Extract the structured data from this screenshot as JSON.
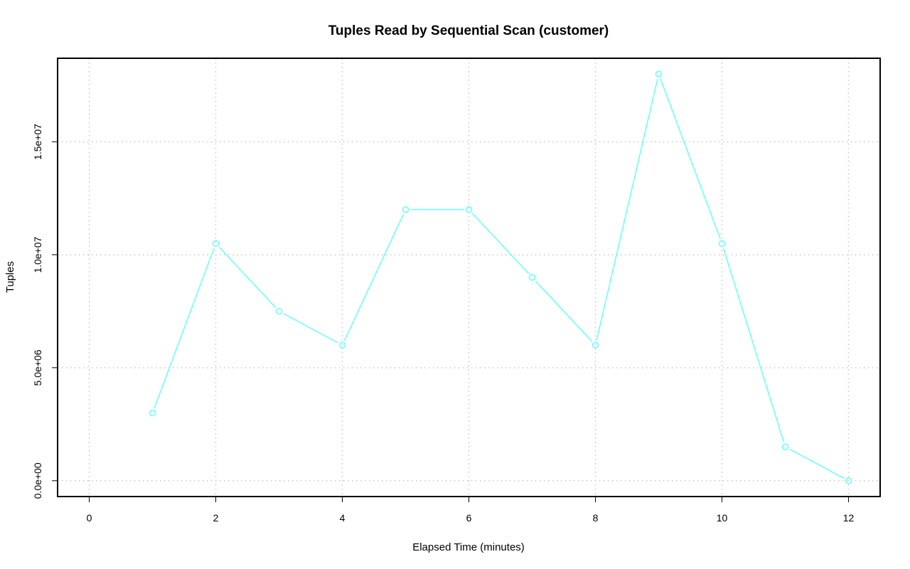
{
  "chart_data": {
    "type": "line",
    "title": "Tuples Read by Sequential Scan (customer)",
    "xlabel": "Elapsed Time (minutes)",
    "ylabel": "Tuples",
    "xlim": [
      -0.5,
      12.5
    ],
    "ylim": [
      -700000,
      18700000
    ],
    "x_ticks": [
      0,
      2,
      4,
      6,
      8,
      10,
      12
    ],
    "x_tick_labels": [
      "0",
      "2",
      "4",
      "6",
      "8",
      "10",
      "12"
    ],
    "y_ticks": [
      0,
      5000000,
      10000000,
      15000000
    ],
    "y_tick_labels": [
      "0.0e+00",
      "5.0e+06",
      "1.0e+07",
      "1.5e+07"
    ],
    "grid": true,
    "legend": "none",
    "series": [
      {
        "color": "#66ffff",
        "marker": "open-circle",
        "x": [
          1,
          2,
          3,
          4,
          5,
          6,
          7,
          8,
          9,
          10,
          11,
          12
        ],
        "y": [
          3000000,
          10500000,
          7500000,
          6000000,
          12000000,
          12000000,
          9000000,
          6000000,
          18000000,
          10500000,
          1500000,
          0
        ]
      }
    ]
  }
}
